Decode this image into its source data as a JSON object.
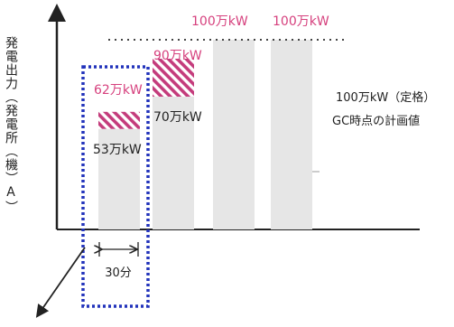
{
  "chart_data": {
    "type": "bar",
    "ylabel": "発電出力（発電所（機）A）",
    "categories": [
      "",
      "",
      "",
      ""
    ],
    "series": [
      {
        "values": [
          53,
          70,
          100,
          100
        ]
      }
    ],
    "increments": [
      {
        "category_index": 0,
        "from": 53,
        "to": 62
      },
      {
        "category_index": 1,
        "from": 70,
        "to": 90
      }
    ],
    "data_labels": [
      {
        "id": "bar1-top",
        "text": "62万kW",
        "color": "#d6417e"
      },
      {
        "id": "bar1-base",
        "text": "53万kW",
        "color": "#222222"
      },
      {
        "id": "bar2-top",
        "text": "90万kW",
        "color": "#d6417e"
      },
      {
        "id": "bar2-base",
        "text": "70万kW",
        "color": "#222222"
      },
      {
        "id": "bar3-top",
        "text": "100万kW",
        "color": "#d6417e"
      },
      {
        "id": "bar4-top",
        "text": "100万kW",
        "color": "#d6417e"
      }
    ],
    "reference_line": {
      "value": 100,
      "style": "dotted",
      "annotation": [
        "100万kW（定格）",
        "GC時点の計画値"
      ]
    },
    "highlight_box": {
      "category_index": 0,
      "color": "#2233bb",
      "style": "dotted"
    },
    "duration_label": "30分",
    "ylim": [
      0,
      130
    ],
    "grid": false,
    "colors": {
      "bar": "#e6e6e6",
      "increment": "#c43c7c",
      "label_accent": "#d6417e",
      "axis": "#222222",
      "box": "#2233bb"
    }
  }
}
